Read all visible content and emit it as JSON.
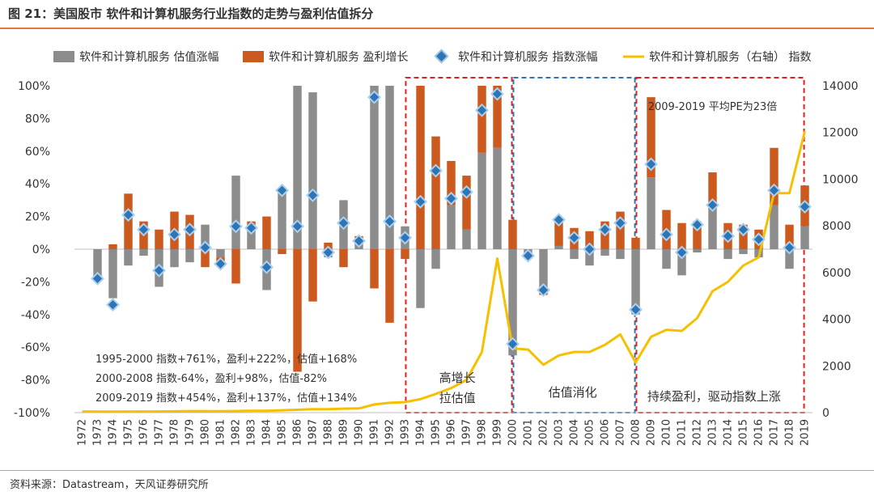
{
  "header": {
    "title": "图 21：美国股市 软件和计算机服务行业指数的走势与盈利估值拆分"
  },
  "footer": {
    "source": "资料来源：Datastream，天风证券研究所"
  },
  "colors": {
    "valuation": "#8c8c8c",
    "earnings": "#cc5a1e",
    "index_change": "#2e75b6",
    "index_line": "#f5c000",
    "box_red": "#e02020",
    "box_blue": "#2e75b6",
    "rule": "#e07b39"
  },
  "chart_data": {
    "type": "bar",
    "categories": [
      "1972",
      "1973",
      "1974",
      "1975",
      "1976",
      "1977",
      "1978",
      "1979",
      "1980",
      "1981",
      "1982",
      "1983",
      "1984",
      "1985",
      "1986",
      "1987",
      "1988",
      "1989",
      "1990",
      "1991",
      "1992",
      "1993",
      "1994",
      "1995",
      "1996",
      "1997",
      "1998",
      "1999",
      "2000",
      "2001",
      "2002",
      "2003",
      "2004",
      "2005",
      "2006",
      "2007",
      "2008",
      "2009",
      "2010",
      "2011",
      "2012",
      "2013",
      "2014",
      "2015",
      "2016",
      "2017",
      "2018",
      "2019"
    ],
    "series": [
      {
        "name": "软件和计算机服务 估值涨幅",
        "kind": "bar",
        "values": [
          0,
          -18,
          -30,
          -10,
          -4,
          -23,
          -11,
          -8,
          15,
          -5,
          45,
          11,
          -25,
          35,
          100,
          96,
          -5,
          30,
          6,
          100,
          100,
          14,
          -36,
          -12,
          27,
          12,
          59,
          62,
          -65,
          -3,
          -24,
          2,
          -6,
          -10,
          -4,
          -6,
          -40,
          44,
          -12,
          -16,
          -2,
          25,
          -6,
          -3,
          -5,
          27,
          -12,
          14
        ]
      },
      {
        "name": "软件和计算机服务 盈利增长",
        "kind": "bar",
        "values": [
          0,
          0,
          3,
          34,
          17,
          12,
          23,
          21,
          -11,
          -3,
          -21,
          6,
          20,
          -3,
          -75,
          -32,
          4,
          -11,
          2,
          -24,
          -45,
          -6,
          100,
          69,
          27,
          33,
          75,
          82,
          18,
          -2,
          -4,
          16,
          13,
          11,
          17,
          23,
          7,
          49,
          24,
          16,
          17,
          22,
          16,
          15,
          12,
          35,
          15,
          25
        ]
      },
      {
        "name": "软件和计算机服务 指数涨幅",
        "kind": "marker",
        "values": [
          0,
          -18,
          -34,
          21,
          12,
          -13,
          9,
          12,
          1,
          -9,
          14,
          13,
          -11,
          36,
          14,
          33,
          -2,
          16,
          5,
          93,
          17,
          7,
          29,
          48,
          31,
          35,
          85,
          95,
          -58,
          -4,
          -25,
          18,
          7,
          0,
          12,
          16,
          -37,
          52,
          9,
          -2,
          15,
          27,
          8,
          12,
          6,
          36,
          1,
          26
        ]
      },
      {
        "name": "软件和计算机服务（右轴） 指数",
        "kind": "line",
        "axis": "right",
        "values": [
          50,
          45,
          40,
          45,
          50,
          50,
          55,
          65,
          65,
          60,
          70,
          80,
          75,
          100,
          120,
          150,
          150,
          170,
          180,
          350,
          420,
          450,
          580,
          800,
          1050,
          1400,
          2600,
          6600,
          2750,
          2700,
          2050,
          2450,
          2600,
          2600,
          2900,
          3350,
          2150,
          3250,
          3550,
          3500,
          4050,
          5200,
          5600,
          6300,
          6650,
          9400,
          9400,
          12050
        ]
      }
    ],
    "y_left": {
      "range": [
        -100,
        100
      ],
      "ticks": [
        "-100%",
        "-80%",
        "-60%",
        "-40%",
        "-20%",
        "0%",
        "20%",
        "40%",
        "60%",
        "80%",
        "100%"
      ]
    },
    "y_right": {
      "range": [
        0,
        14000
      ],
      "ticks": [
        "0",
        "2000",
        "4000",
        "6000",
        "8000",
        "10000",
        "12000",
        "14000"
      ]
    },
    "legend_position": "top",
    "annotations": {
      "stats": [
        "1995-2000  指数+761%，盈利+222%，估值+168%",
        "2000-2008  指数-64%，盈利+98%，估值-82%",
        "2009-2019  指数+454%，盈利+137%，估值+134%"
      ],
      "period1_lines": [
        "高增长",
        "拉估值"
      ],
      "period2": "估值消化",
      "period3": "持续盈利，驱动指数上涨",
      "pe_note": "2009-2019  平均PE为23倍"
    }
  }
}
